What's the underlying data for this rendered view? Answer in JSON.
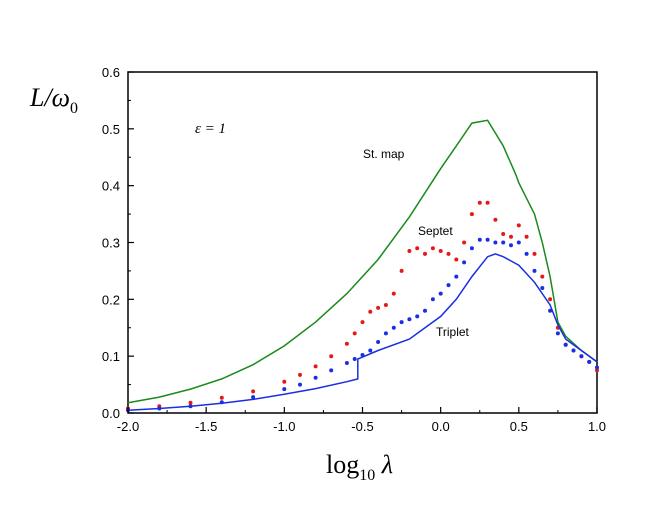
{
  "chart_data": {
    "type": "line",
    "ylabel": {
      "main": "L/ω",
      "sub": "0"
    },
    "xlabel": {
      "main": "log",
      "sub": "10",
      "tail": " λ"
    },
    "parameter_label": "ε = 1",
    "xlim": [
      -2.0,
      1.0
    ],
    "ylim": [
      0.0,
      0.6
    ],
    "x_ticks": [
      "-2.0",
      "-1.5",
      "-1.0",
      "-0.5",
      "0.0",
      "0.5",
      "1.0"
    ],
    "y_ticks": [
      "0.0",
      "0.1",
      "0.2",
      "0.3",
      "0.4",
      "0.5",
      "0.6"
    ],
    "grid": false,
    "series": [
      {
        "name": "St. map",
        "style": "line",
        "color": "#1a8a1a",
        "x": [
          -2.0,
          -1.8,
          -1.6,
          -1.4,
          -1.2,
          -1.0,
          -0.8,
          -0.6,
          -0.4,
          -0.2,
          0.0,
          0.1,
          0.2,
          0.3,
          0.4,
          0.48,
          0.5,
          0.6,
          0.65,
          0.7,
          0.75,
          0.8,
          0.9,
          1.0
        ],
        "y": [
          0.018,
          0.028,
          0.042,
          0.06,
          0.085,
          0.118,
          0.16,
          0.21,
          0.27,
          0.345,
          0.43,
          0.47,
          0.51,
          0.515,
          0.47,
          0.42,
          0.405,
          0.35,
          0.3,
          0.24,
          0.16,
          0.135,
          0.11,
          0.09
        ]
      },
      {
        "name": "Septet",
        "style": "dots",
        "color": "#e41a1a",
        "x": [
          -2.0,
          -1.8,
          -1.6,
          -1.4,
          -1.2,
          -1.0,
          -0.9,
          -0.8,
          -0.7,
          -0.6,
          -0.55,
          -0.5,
          -0.45,
          -0.4,
          -0.35,
          -0.3,
          -0.25,
          -0.2,
          -0.15,
          -0.1,
          -0.05,
          0.0,
          0.05,
          0.1,
          0.15,
          0.2,
          0.25,
          0.3,
          0.35,
          0.4,
          0.45,
          0.5,
          0.55,
          0.6,
          0.65,
          0.7,
          0.75,
          0.8,
          0.85,
          0.9,
          0.95,
          1.0
        ],
        "y": [
          0.008,
          0.012,
          0.018,
          0.027,
          0.038,
          0.055,
          0.067,
          0.082,
          0.1,
          0.122,
          0.14,
          0.16,
          0.178,
          0.185,
          0.19,
          0.21,
          0.25,
          0.285,
          0.29,
          0.28,
          0.29,
          0.285,
          0.28,
          0.27,
          0.3,
          0.35,
          0.37,
          0.37,
          0.34,
          0.315,
          0.31,
          0.33,
          0.31,
          0.28,
          0.24,
          0.2,
          0.15,
          0.12,
          0.11,
          0.1,
          0.09,
          0.075
        ]
      },
      {
        "name": "Triplet",
        "style": "dots",
        "color": "#1a2ee4",
        "x": [
          -2.0,
          -1.8,
          -1.6,
          -1.4,
          -1.2,
          -1.0,
          -0.9,
          -0.8,
          -0.7,
          -0.6,
          -0.55,
          -0.5,
          -0.45,
          -0.4,
          -0.35,
          -0.3,
          -0.25,
          -0.2,
          -0.15,
          -0.1,
          -0.05,
          0.0,
          0.05,
          0.1,
          0.15,
          0.2,
          0.25,
          0.3,
          0.35,
          0.4,
          0.45,
          0.5,
          0.55,
          0.6,
          0.65,
          0.7,
          0.75,
          0.8,
          0.85,
          0.9,
          0.95,
          1.0
        ],
        "y": [
          0.005,
          0.008,
          0.012,
          0.019,
          0.028,
          0.042,
          0.05,
          0.062,
          0.075,
          0.088,
          0.095,
          0.102,
          0.11,
          0.125,
          0.14,
          0.15,
          0.16,
          0.165,
          0.17,
          0.18,
          0.2,
          0.21,
          0.225,
          0.24,
          0.265,
          0.29,
          0.305,
          0.305,
          0.3,
          0.3,
          0.295,
          0.3,
          0.28,
          0.25,
          0.22,
          0.18,
          0.14,
          0.12,
          0.11,
          0.1,
          0.09,
          0.08
        ]
      },
      {
        "name": "Triplet",
        "style": "line",
        "color": "#1a2ee4",
        "x": [
          -2.0,
          -1.8,
          -1.6,
          -1.4,
          -1.2,
          -1.0,
          -0.8,
          -0.6,
          -0.53,
          -0.53,
          -0.4,
          -0.2,
          0.0,
          0.1,
          0.2,
          0.3,
          0.35,
          0.4,
          0.5,
          0.6,
          0.7,
          0.75,
          0.8,
          0.9,
          1.0
        ],
        "y": [
          0.005,
          0.008,
          0.012,
          0.017,
          0.024,
          0.033,
          0.043,
          0.055,
          0.06,
          0.095,
          0.11,
          0.13,
          0.17,
          0.2,
          0.24,
          0.275,
          0.28,
          0.275,
          0.26,
          0.23,
          0.19,
          0.155,
          0.13,
          0.11,
          0.09
        ]
      }
    ]
  }
}
